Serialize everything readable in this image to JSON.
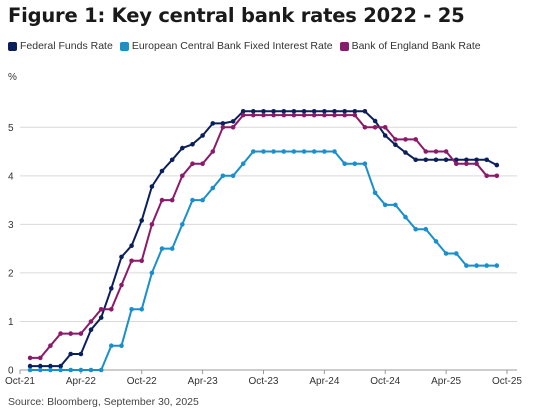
{
  "figure": {
    "title": "Figure 1: Key central bank rates 2022 - 25",
    "source": "Source: Bloomberg, September 30, 2025"
  },
  "chart_data": {
    "type": "line",
    "title": "Figure 1: Key central bank rates 2022 - 25",
    "ylabel": "%",
    "xlabel": "",
    "ylim": [
      0,
      5.5
    ],
    "xlim": [
      "2021-10-01",
      "2025-10-31"
    ],
    "yticks": [
      0,
      1,
      2,
      3,
      4,
      5
    ],
    "xticks": [
      {
        "date": "2021-10-01",
        "label": "Oct-21"
      },
      {
        "date": "2022-04-01",
        "label": "Apr-22"
      },
      {
        "date": "2022-10-01",
        "label": "Oct-22"
      },
      {
        "date": "2023-04-01",
        "label": "Apr-23"
      },
      {
        "date": "2023-10-01",
        "label": "Oct-23"
      },
      {
        "date": "2024-04-01",
        "label": "Apr-24"
      },
      {
        "date": "2024-10-01",
        "label": "Oct-24"
      },
      {
        "date": "2025-04-01",
        "label": "Apr-25"
      },
      {
        "date": "2025-10-01",
        "label": "Oct-25"
      }
    ],
    "grid": "horizontal",
    "legend_position": "top-left",
    "series": [
      {
        "name": "Federal Funds Rate",
        "color": "#0b1f5c",
        "x": [
          "2021-11",
          "2021-12",
          "2022-01",
          "2022-02",
          "2022-03",
          "2022-04",
          "2022-05",
          "2022-06",
          "2022-07",
          "2022-08",
          "2022-09",
          "2022-10",
          "2022-11",
          "2022-12",
          "2023-01",
          "2023-02",
          "2023-03",
          "2023-04",
          "2023-05",
          "2023-06",
          "2023-07",
          "2023-08",
          "2023-09",
          "2023-10",
          "2023-11",
          "2023-12",
          "2024-01",
          "2024-02",
          "2024-03",
          "2024-04",
          "2024-05",
          "2024-06",
          "2024-07",
          "2024-08",
          "2024-09",
          "2024-10",
          "2024-11",
          "2024-12",
          "2025-01",
          "2025-02",
          "2025-03",
          "2025-04",
          "2025-05",
          "2025-06",
          "2025-07",
          "2025-08",
          "2025-09"
        ],
        "y": [
          0.08,
          0.08,
          0.08,
          0.08,
          0.33,
          0.33,
          0.83,
          1.08,
          1.68,
          2.33,
          2.56,
          3.08,
          3.78,
          4.1,
          4.33,
          4.57,
          4.65,
          4.83,
          5.08,
          5.08,
          5.12,
          5.33,
          5.33,
          5.33,
          5.33,
          5.33,
          5.33,
          5.33,
          5.33,
          5.33,
          5.33,
          5.33,
          5.33,
          5.33,
          5.13,
          4.83,
          4.64,
          4.48,
          4.33,
          4.33,
          4.33,
          4.33,
          4.33,
          4.33,
          4.33,
          4.33,
          4.22
        ]
      },
      {
        "name": "European Central Bank Fixed Interest Rate",
        "color": "#1a8fcc",
        "x": [
          "2021-11",
          "2021-12",
          "2022-01",
          "2022-02",
          "2022-03",
          "2022-04",
          "2022-05",
          "2022-06",
          "2022-07",
          "2022-08",
          "2022-09",
          "2022-10",
          "2022-11",
          "2022-12",
          "2023-01",
          "2023-02",
          "2023-03",
          "2023-04",
          "2023-05",
          "2023-06",
          "2023-07",
          "2023-08",
          "2023-09",
          "2023-10",
          "2023-11",
          "2023-12",
          "2024-01",
          "2024-02",
          "2024-03",
          "2024-04",
          "2024-05",
          "2024-06",
          "2024-07",
          "2024-08",
          "2024-09",
          "2024-10",
          "2024-11",
          "2024-12",
          "2025-01",
          "2025-02",
          "2025-03",
          "2025-04",
          "2025-05",
          "2025-06",
          "2025-07",
          "2025-08",
          "2025-09"
        ],
        "y": [
          0,
          0,
          0,
          0,
          0,
          0,
          0,
          0,
          0.5,
          0.5,
          1.25,
          1.25,
          2.0,
          2.5,
          2.5,
          3.0,
          3.5,
          3.5,
          3.75,
          4.0,
          4.0,
          4.25,
          4.5,
          4.5,
          4.5,
          4.5,
          4.5,
          4.5,
          4.5,
          4.5,
          4.5,
          4.25,
          4.25,
          4.25,
          3.65,
          3.4,
          3.4,
          3.15,
          2.9,
          2.9,
          2.65,
          2.4,
          2.4,
          2.15,
          2.15,
          2.15,
          2.15
        ]
      },
      {
        "name": "Bank of England Bank Rate",
        "color": "#8b1a6b",
        "x": [
          "2021-11",
          "2021-12",
          "2022-01",
          "2022-02",
          "2022-03",
          "2022-04",
          "2022-05",
          "2022-06",
          "2022-07",
          "2022-08",
          "2022-09",
          "2022-10",
          "2022-11",
          "2022-12",
          "2023-01",
          "2023-02",
          "2023-03",
          "2023-04",
          "2023-05",
          "2023-06",
          "2023-07",
          "2023-08",
          "2023-09",
          "2023-10",
          "2023-11",
          "2023-12",
          "2024-01",
          "2024-02",
          "2024-03",
          "2024-04",
          "2024-05",
          "2024-06",
          "2024-07",
          "2024-08",
          "2024-09",
          "2024-10",
          "2024-11",
          "2024-12",
          "2025-01",
          "2025-02",
          "2025-03",
          "2025-04",
          "2025-05",
          "2025-06",
          "2025-07",
          "2025-08",
          "2025-09"
        ],
        "y": [
          0.25,
          0.25,
          0.5,
          0.75,
          0.75,
          0.75,
          1.0,
          1.25,
          1.25,
          1.75,
          2.25,
          2.25,
          3.0,
          3.5,
          3.5,
          4.0,
          4.25,
          4.25,
          4.5,
          5.0,
          5.0,
          5.25,
          5.25,
          5.25,
          5.25,
          5.25,
          5.25,
          5.25,
          5.25,
          5.25,
          5.25,
          5.25,
          5.25,
          5.0,
          5.0,
          5.0,
          4.75,
          4.75,
          4.75,
          4.5,
          4.5,
          4.5,
          4.25,
          4.25,
          4.25,
          4.0,
          4.0
        ]
      }
    ]
  }
}
